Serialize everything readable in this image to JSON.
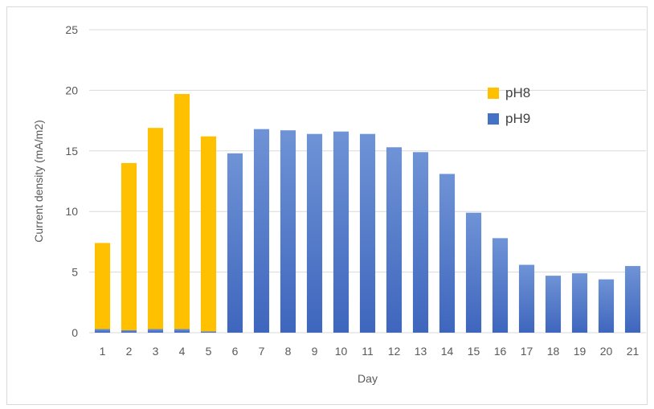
{
  "chart_data": {
    "type": "bar",
    "stacked": true,
    "title": "",
    "xlabel": "Day",
    "ylabel": "Current density (mA/m2)",
    "ylim": [
      0,
      25
    ],
    "yticks": [
      0,
      5,
      10,
      15,
      20,
      25
    ],
    "grid": "horizontal",
    "legend_position": "top-right",
    "categories": [
      "1",
      "2",
      "3",
      "4",
      "5",
      "6",
      "7",
      "8",
      "9",
      "10",
      "11",
      "12",
      "13",
      "14",
      "15",
      "16",
      "17",
      "18",
      "19",
      "20",
      "21"
    ],
    "series": [
      {
        "name": "pH9",
        "color": "#4472c4",
        "values": [
          0.3,
          0.2,
          0.3,
          0.3,
          0.1,
          14.8,
          16.8,
          16.7,
          16.4,
          16.6,
          16.4,
          15.3,
          14.9,
          13.1,
          9.9,
          7.8,
          5.6,
          4.7,
          4.9,
          4.4,
          5.5
        ]
      },
      {
        "name": "pH8",
        "color": "#ffc000",
        "values": [
          7.1,
          13.8,
          16.6,
          19.4,
          16.1,
          0,
          0,
          0,
          0,
          0,
          0,
          0,
          0,
          0,
          0,
          0,
          0,
          0,
          0,
          0,
          0
        ]
      }
    ],
    "legend_order": [
      "pH8",
      "pH9"
    ]
  }
}
